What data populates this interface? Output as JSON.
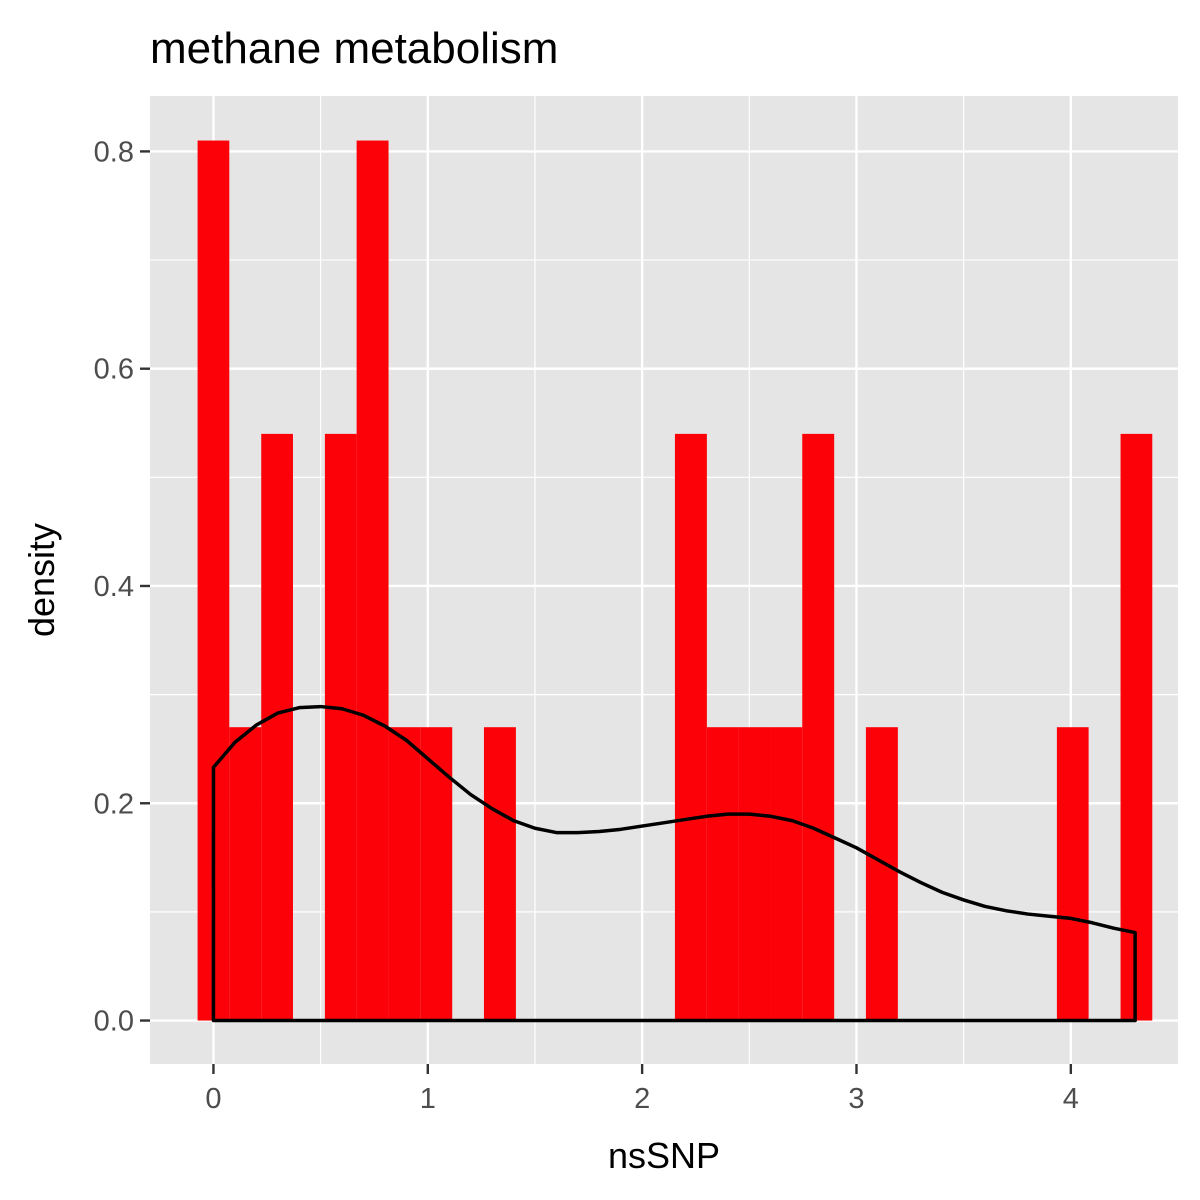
{
  "chart_data": {
    "type": "histogram",
    "title": "methane metabolism",
    "xlabel": "nsSNP",
    "ylabel": "density",
    "xlim": [
      -0.296,
      4.5
    ],
    "ylim": [
      -0.04,
      0.851
    ],
    "x_ticks": [
      0,
      1,
      2,
      3,
      4
    ],
    "y_ticks": [
      0.0,
      0.2,
      0.4,
      0.6,
      0.8
    ],
    "x_tick_labels": [
      "0",
      "1",
      "2",
      "3",
      "4"
    ],
    "y_tick_labels": [
      "0.0",
      "0.2",
      "0.4",
      "0.6",
      "0.8"
    ],
    "grid": true,
    "bin_width": 0.1485,
    "bars": [
      {
        "x0": -0.074,
        "x1": 0.074,
        "density": 0.81
      },
      {
        "x0": 0.074,
        "x1": 0.223,
        "density": 0.27
      },
      {
        "x0": 0.223,
        "x1": 0.371,
        "density": 0.54
      },
      {
        "x0": 0.371,
        "x1": 0.52,
        "density": 0.0
      },
      {
        "x0": 0.52,
        "x1": 0.668,
        "density": 0.54
      },
      {
        "x0": 0.668,
        "x1": 0.817,
        "density": 0.81
      },
      {
        "x0": 0.817,
        "x1": 0.965,
        "density": 0.27
      },
      {
        "x0": 0.965,
        "x1": 1.114,
        "density": 0.27
      },
      {
        "x0": 1.114,
        "x1": 1.262,
        "density": 0.0
      },
      {
        "x0": 1.262,
        "x1": 1.411,
        "density": 0.27
      },
      {
        "x0": 2.153,
        "x1": 2.302,
        "density": 0.54
      },
      {
        "x0": 2.302,
        "x1": 2.45,
        "density": 0.27
      },
      {
        "x0": 2.45,
        "x1": 2.599,
        "density": 0.27
      },
      {
        "x0": 2.599,
        "x1": 2.747,
        "density": 0.27
      },
      {
        "x0": 2.747,
        "x1": 2.896,
        "density": 0.54
      },
      {
        "x0": 3.044,
        "x1": 3.193,
        "density": 0.27
      },
      {
        "x0": 3.935,
        "x1": 4.083,
        "density": 0.27
      },
      {
        "x0": 4.232,
        "x1": 4.38,
        "density": 0.54
      }
    ],
    "density_curve": {
      "x": [
        0.0,
        0.1,
        0.2,
        0.3,
        0.4,
        0.5,
        0.6,
        0.7,
        0.8,
        0.9,
        1.0,
        1.1,
        1.2,
        1.3,
        1.4,
        1.5,
        1.6,
        1.7,
        1.8,
        1.9,
        2.0,
        2.1,
        2.2,
        2.3,
        2.4,
        2.5,
        2.6,
        2.7,
        2.8,
        2.9,
        3.0,
        3.1,
        3.2,
        3.3,
        3.4,
        3.5,
        3.6,
        3.7,
        3.8,
        3.9,
        4.0,
        4.1,
        4.2,
        4.3
      ],
      "y": [
        0.233,
        0.256,
        0.272,
        0.283,
        0.288,
        0.289,
        0.287,
        0.281,
        0.271,
        0.258,
        0.241,
        0.224,
        0.208,
        0.195,
        0.184,
        0.177,
        0.173,
        0.173,
        0.174,
        0.176,
        0.179,
        0.182,
        0.185,
        0.188,
        0.19,
        0.19,
        0.188,
        0.184,
        0.177,
        0.168,
        0.159,
        0.148,
        0.137,
        0.127,
        0.118,
        0.111,
        0.105,
        0.101,
        0.098,
        0.096,
        0.094,
        0.09,
        0.085,
        0.081
      ]
    },
    "colors": {
      "bar_fill": "#fc0107",
      "curve": "#000000",
      "panel": "#e5e5e5",
      "grid": "#ffffff"
    }
  }
}
